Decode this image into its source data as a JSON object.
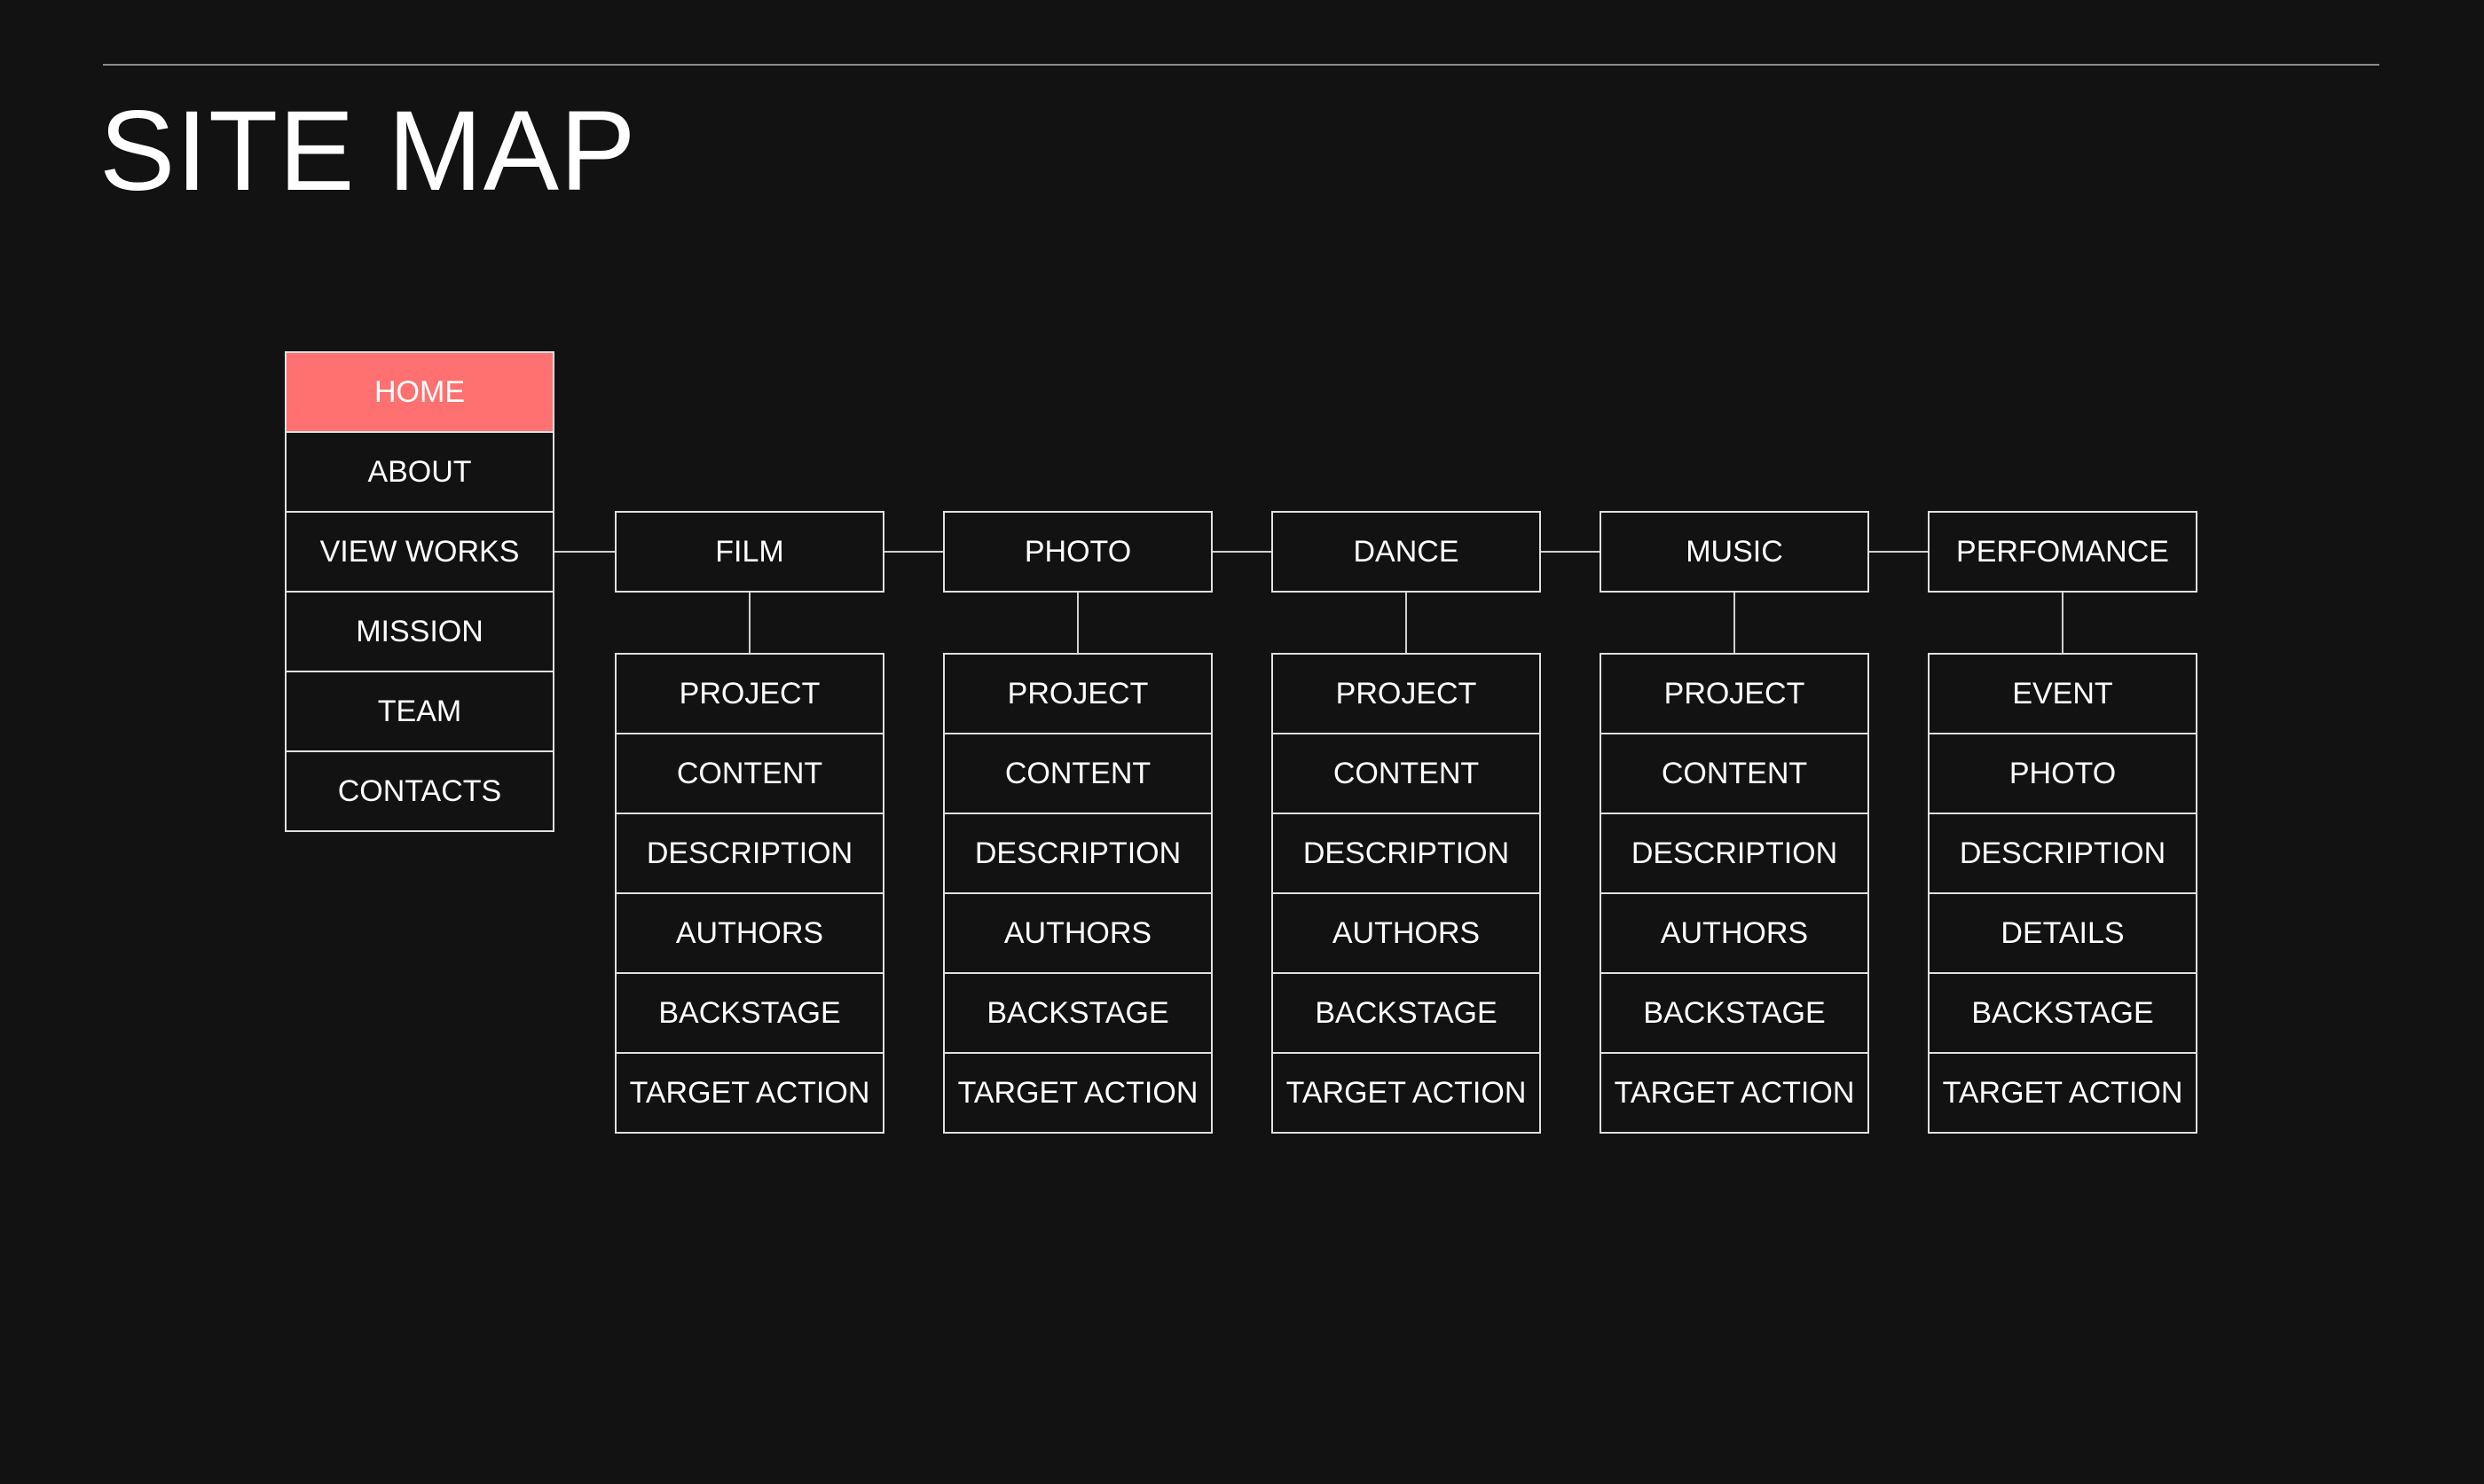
{
  "title": "SITE MAP",
  "colors": {
    "background": "#121212",
    "active": "#ff7070",
    "line": "#e0e0e0"
  },
  "main_menu": {
    "active_index": 0,
    "items": [
      "HOME",
      "ABOUT",
      "VIEW WORKS",
      "MISSION",
      "TEAM",
      "CONTACTS"
    ]
  },
  "sections": [
    {
      "label": "FILM",
      "children": [
        "PROJECT",
        "CONTENT",
        "DESCRIPTION",
        "AUTHORS",
        "BACKSTAGE",
        "TARGET ACTION"
      ]
    },
    {
      "label": "PHOTO",
      "children": [
        "PROJECT",
        "CONTENT",
        "DESCRIPTION",
        "AUTHORS",
        "BACKSTAGE",
        "TARGET ACTION"
      ]
    },
    {
      "label": "DANCE",
      "children": [
        "PROJECT",
        "CONTENT",
        "DESCRIPTION",
        "AUTHORS",
        "BACKSTAGE",
        "TARGET ACTION"
      ]
    },
    {
      "label": "MUSIC",
      "children": [
        "PROJECT",
        "CONTENT",
        "DESCRIPTION",
        "AUTHORS",
        "BACKSTAGE",
        "TARGET ACTION"
      ]
    },
    {
      "label": "PERFOMANCE",
      "children": [
        "EVENT",
        "PHOTO",
        "DESCRIPTION",
        "DETAILS",
        "BACKSTAGE",
        "TARGET ACTION"
      ]
    }
  ]
}
